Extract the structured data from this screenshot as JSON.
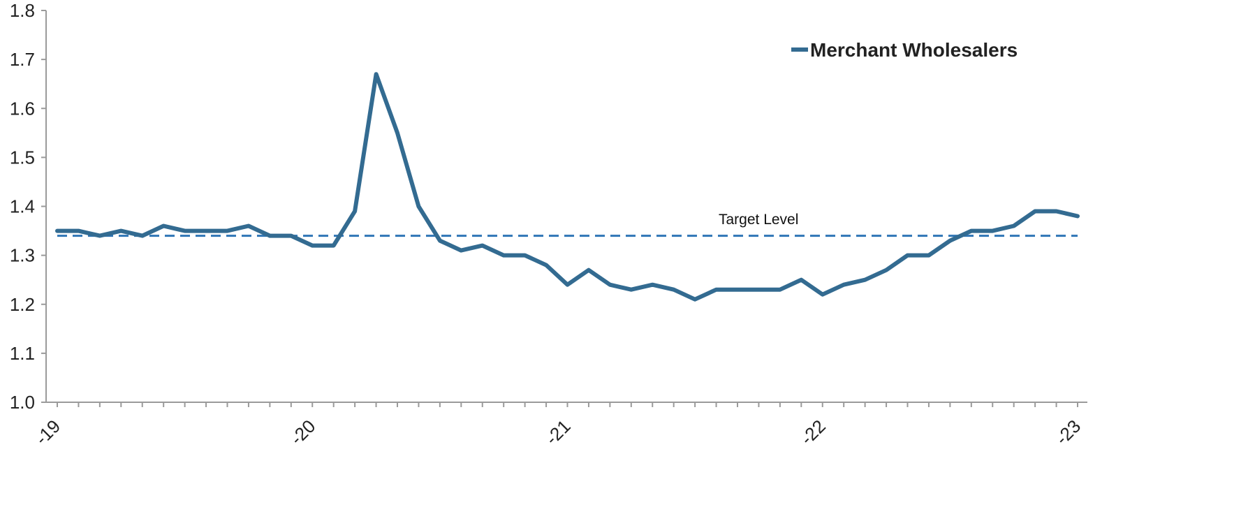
{
  "chart_data": {
    "type": "line",
    "title": "",
    "xlabel": "",
    "ylabel": "",
    "ylim": [
      1.0,
      1.8
    ],
    "yticks": [
      "1.0",
      "1.1",
      "1.2",
      "1.3",
      "1.4",
      "1.5",
      "1.6",
      "1.7",
      "1.8"
    ],
    "xticks": [
      {
        "label": "-19",
        "index": 0
      },
      {
        "label": "-20",
        "index": 12
      },
      {
        "label": "-21",
        "index": 24
      },
      {
        "label": "-22",
        "index": 36
      },
      {
        "label": "-23",
        "index": 48
      }
    ],
    "minor_tick_count": 49,
    "grid": false,
    "legend_position": "top-right",
    "series": [
      {
        "name": "Merchant Wholesalers",
        "color": "#336b91",
        "values": [
          1.35,
          1.35,
          1.34,
          1.35,
          1.34,
          1.36,
          1.35,
          1.35,
          1.35,
          1.36,
          1.34,
          1.34,
          1.32,
          1.32,
          1.39,
          1.67,
          1.55,
          1.4,
          1.33,
          1.31,
          1.32,
          1.3,
          1.3,
          1.28,
          1.24,
          1.27,
          1.24,
          1.23,
          1.24,
          1.23,
          1.21,
          1.23,
          1.23,
          1.23,
          1.23,
          1.25,
          1.22,
          1.24,
          1.25,
          1.27,
          1.3,
          1.3,
          1.33,
          1.35,
          1.35,
          1.36,
          1.39,
          1.39,
          1.38
        ]
      }
    ],
    "reference_line": {
      "label": "Target Level",
      "value": 1.34,
      "color": "#2e75b6",
      "style": "dashed"
    }
  }
}
